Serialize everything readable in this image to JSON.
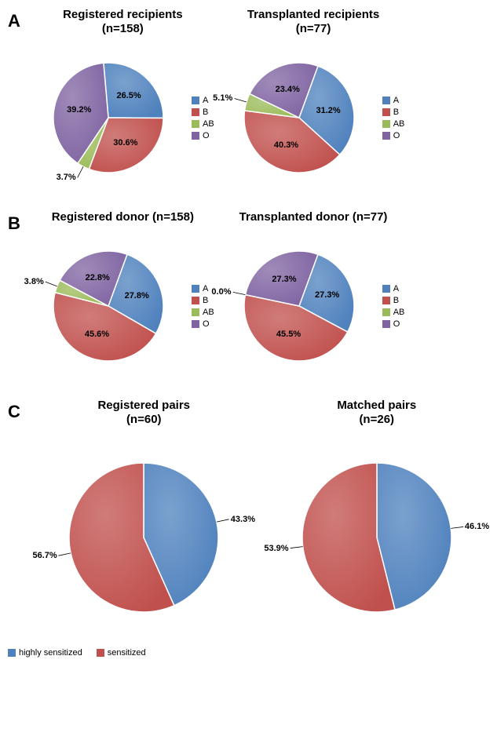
{
  "colors": {
    "A": "#4f81bd",
    "B": "#c0504d",
    "AB": "#9bbb59",
    "O": "#8064a2",
    "highly_sensitized": "#4f81bd",
    "sensitized": "#c0504d",
    "slice_border": "#ffffff",
    "text": "#000000"
  },
  "font": {
    "title_size": 15,
    "label_size": 11,
    "letter_size": 22
  },
  "layout": {
    "pie_radius_ab": 70,
    "pie_radius_c": 95
  },
  "panels": {
    "A": {
      "letter": "A",
      "left": {
        "title": "Registered recipients\n(n=158)",
        "type": "pie",
        "categories": [
          "A",
          "B",
          "AB",
          "O"
        ],
        "values": [
          26.5,
          30.6,
          3.7,
          39.2
        ],
        "colors": [
          "#4f81bd",
          "#c0504d",
          "#9bbb59",
          "#8064a2"
        ],
        "labels": [
          "26.5%",
          "30.6%",
          "3.7%",
          "39.2%"
        ],
        "start_angle": -5
      },
      "right": {
        "title": "Transplanted recipients\n(n=77)",
        "type": "pie",
        "categories": [
          "A",
          "B",
          "AB",
          "O"
        ],
        "values": [
          31.2,
          40.3,
          5.1,
          23.4
        ],
        "colors": [
          "#4f81bd",
          "#c0504d",
          "#9bbb59",
          "#8064a2"
        ],
        "labels": [
          "31.2%",
          "40.3%",
          "5.1%",
          "23.4%"
        ],
        "start_angle": 20
      },
      "legend": [
        "A",
        "B",
        "AB",
        "O"
      ]
    },
    "B": {
      "letter": "B",
      "left": {
        "title": "Registered donor (n=158)",
        "type": "pie",
        "categories": [
          "A",
          "B",
          "AB",
          "O"
        ],
        "values": [
          27.8,
          45.6,
          3.8,
          22.8
        ],
        "colors": [
          "#4f81bd",
          "#c0504d",
          "#9bbb59",
          "#8064a2"
        ],
        "labels": [
          "27.8%",
          "45.6%",
          "3.8%",
          "22.8%"
        ],
        "start_angle": 20
      },
      "right": {
        "title": "Transplanted donor (n=77)",
        "type": "pie",
        "categories": [
          "A",
          "B",
          "AB",
          "O"
        ],
        "values": [
          27.3,
          45.5,
          0.0,
          27.3
        ],
        "colors": [
          "#4f81bd",
          "#c0504d",
          "#9bbb59",
          "#8064a2"
        ],
        "labels": [
          "27.3%",
          "45.5%",
          "0.0%",
          "27.3%"
        ],
        "start_angle": 20
      },
      "legend": [
        "A",
        "B",
        "AB",
        "O"
      ]
    },
    "C": {
      "letter": "C",
      "left": {
        "title": "Registered pairs\n(n=60)",
        "type": "pie",
        "categories": [
          "highly sensitized",
          "sensitized"
        ],
        "values": [
          43.3,
          56.7
        ],
        "colors": [
          "#4f81bd",
          "#c0504d"
        ],
        "labels": [
          "43.3%",
          "56.7%"
        ],
        "start_angle": 0
      },
      "right": {
        "title": "Matched pairs\n(n=26)",
        "type": "pie",
        "categories": [
          "highly sensitized",
          "sensitized"
        ],
        "values": [
          46.1,
          53.9
        ],
        "colors": [
          "#4f81bd",
          "#c0504d"
        ],
        "labels": [
          "46.1%",
          "53.9%"
        ],
        "start_angle": 0
      },
      "legend": [
        "highly sensitized",
        "sensitized"
      ]
    }
  }
}
